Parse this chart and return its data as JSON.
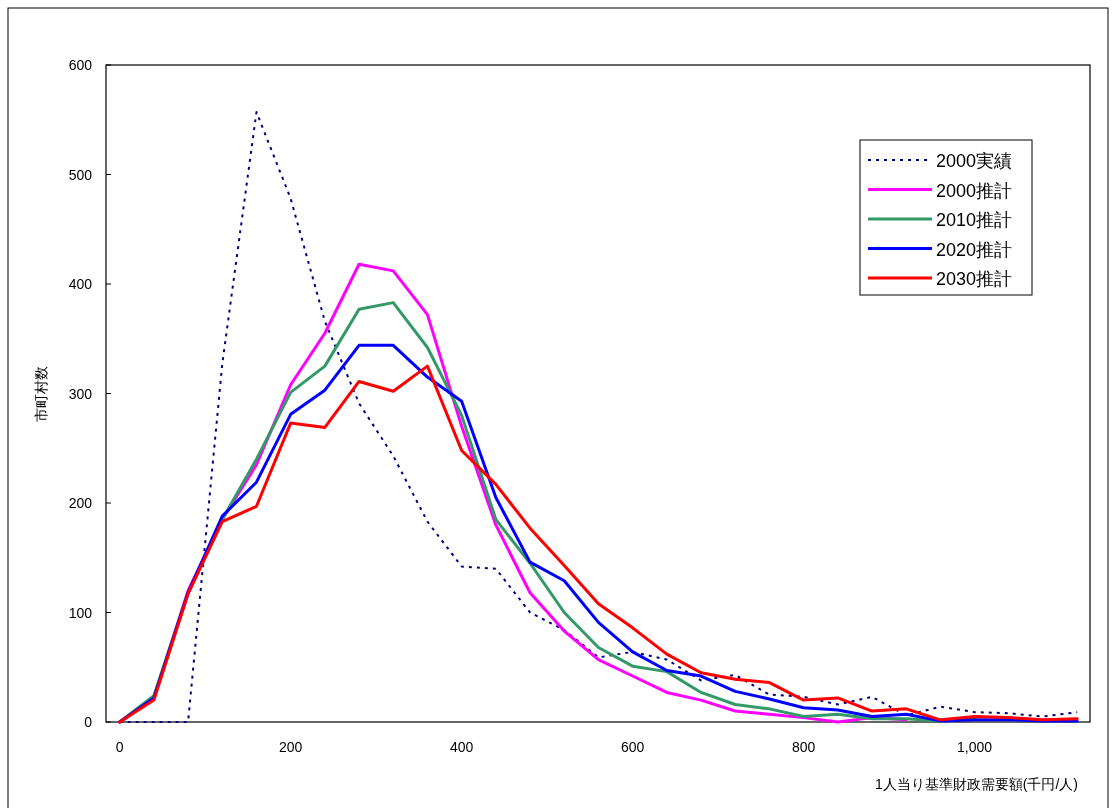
{
  "chart_data": {
    "type": "line",
    "xlabel": "1人当り基準財政需要額(千円/人)",
    "ylabel": "市町村数",
    "x": [
      0,
      40,
      80,
      120,
      160,
      200,
      240,
      280,
      320,
      360,
      400,
      440,
      480,
      520,
      560,
      600,
      640,
      680,
      720,
      760,
      800,
      840,
      880,
      920,
      960,
      1000,
      1040,
      1080,
      1120
    ],
    "series": [
      {
        "name": "2000実績",
        "color": "#000080",
        "line_style": "dotted",
        "values": [
          0,
          0,
          0,
          327,
          557,
          478,
          366,
          291,
          243,
          183,
          142,
          140,
          100,
          84,
          59,
          64,
          57,
          38,
          43,
          25,
          23,
          16,
          23,
          6,
          14,
          9,
          8,
          5,
          9
        ]
      },
      {
        "name": "2000推計",
        "color": "#ff00ff",
        "values": [
          0,
          22,
          120,
          185,
          235,
          308,
          355,
          418,
          412,
          372,
          270,
          180,
          118,
          83,
          57,
          42,
          27,
          20,
          10,
          7,
          4,
          0,
          4,
          2,
          null,
          null,
          null,
          null,
          null
        ]
      },
      {
        "name": "2010推計",
        "color": "#339966",
        "values": [
          0,
          24,
          118,
          185,
          240,
          301,
          325,
          377,
          383,
          342,
          280,
          185,
          145,
          100,
          68,
          51,
          46,
          27,
          16,
          12,
          5,
          7,
          3,
          3,
          1,
          4,
          null,
          null,
          null
        ]
      },
      {
        "name": "2020推計",
        "color": "#0000ff",
        "values": [
          0,
          22,
          118,
          188,
          219,
          281,
          303,
          344,
          344,
          315,
          293,
          205,
          146,
          129,
          91,
          64,
          47,
          42,
          28,
          21,
          13,
          11,
          5,
          7,
          1,
          2,
          2,
          1,
          1
        ]
      },
      {
        "name": "2030推計",
        "color": "#ff0000",
        "values": [
          0,
          20,
          117,
          183,
          197,
          273,
          269,
          311,
          302,
          325,
          248,
          217,
          177,
          143,
          108,
          86,
          62,
          45,
          39,
          36,
          20,
          22,
          10,
          12,
          2,
          5,
          4,
          2,
          3
        ]
      }
    ],
    "xlim": [
      -16,
      1135
    ],
    "ylim": [
      0,
      600
    ],
    "xticks": [
      0,
      200,
      400,
      600,
      800,
      {
        "value": 1000,
        "label": "1,000"
      }
    ],
    "yticks": [
      0,
      100,
      200,
      300,
      400,
      500,
      600
    ],
    "grid": false,
    "legend": "top right",
    "marker": "none",
    "line_style": "solid"
  }
}
